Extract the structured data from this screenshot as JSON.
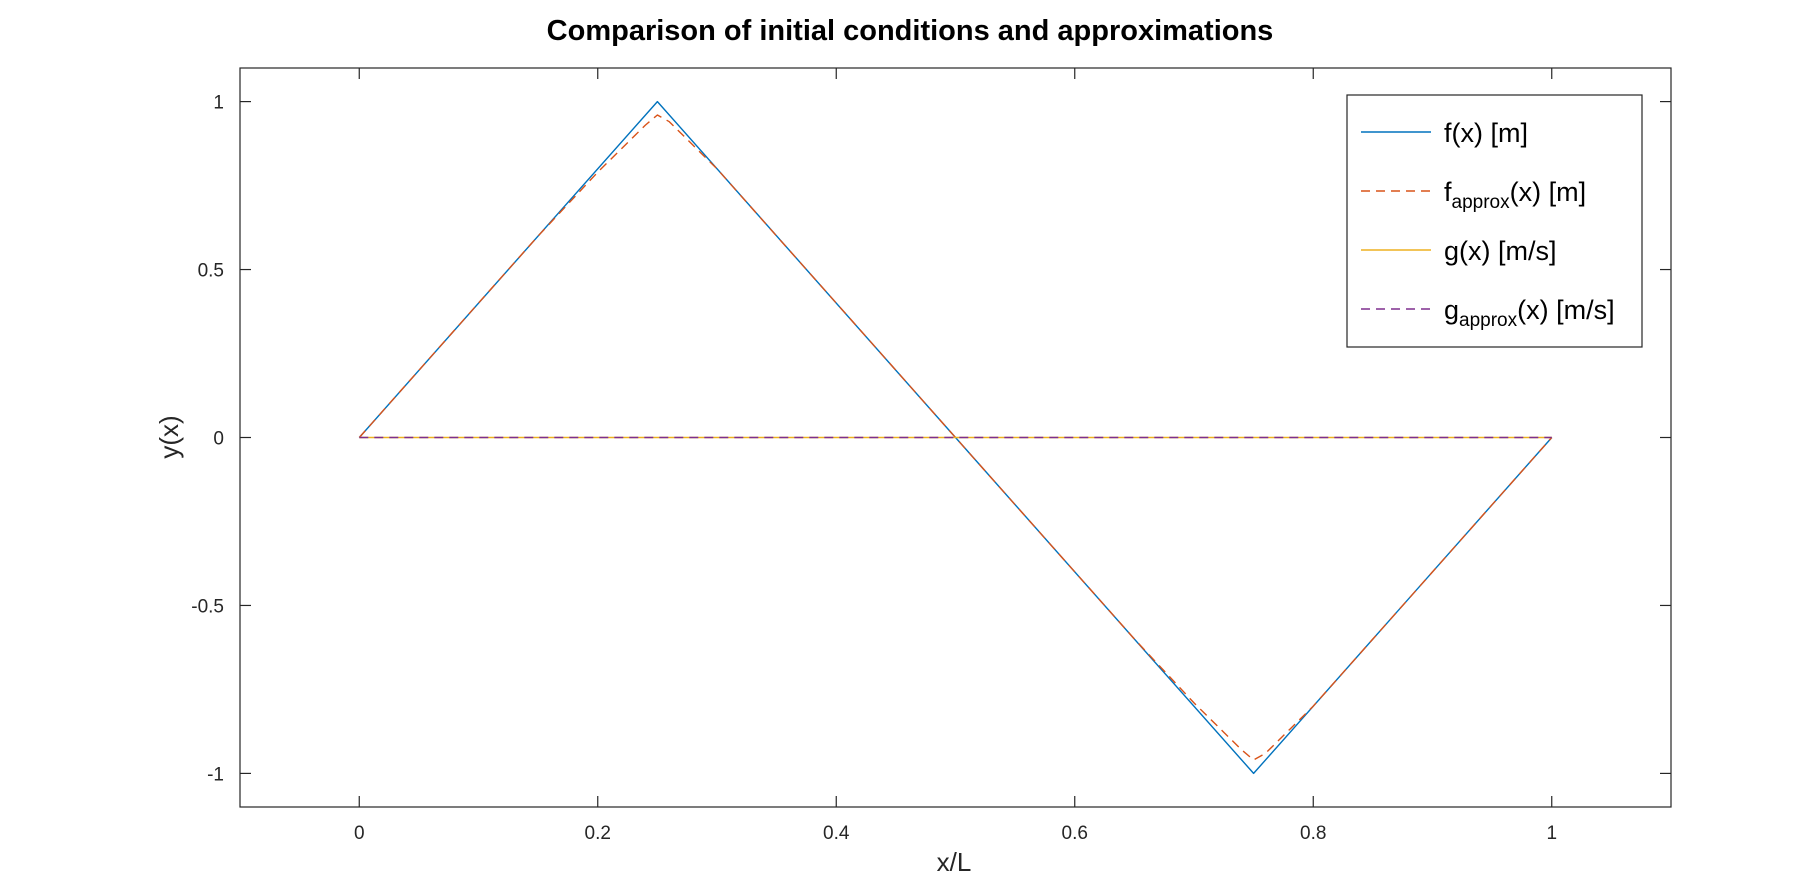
{
  "chart_data": {
    "type": "line",
    "title": "Comparison of initial conditions and approximations",
    "xlabel": "x/L",
    "ylabel": "y(x)",
    "xlim": [
      -0.1,
      1.1
    ],
    "ylim": [
      -1.1,
      1.1
    ],
    "xticks": [
      0,
      0.2,
      0.4,
      0.6,
      0.8,
      1
    ],
    "xtick_labels": [
      "0",
      "0.2",
      "0.4",
      "0.6",
      "0.8",
      "1"
    ],
    "yticks": [
      -1,
      -0.5,
      0,
      0.5,
      1
    ],
    "ytick_labels": [
      "-1",
      "-0.5",
      "0",
      "0.5",
      "1"
    ],
    "grid": false,
    "legend_position": "top-right",
    "series": [
      {
        "name": "f(x) [m]",
        "legend_base": "f",
        "legend_sub": "",
        "legend_rest": "(x) [m]",
        "color": "#0072BD",
        "style": "solid",
        "x": [
          0,
          0.25,
          0.5,
          0.75,
          1
        ],
        "y": [
          0,
          1,
          0,
          -1,
          0
        ]
      },
      {
        "name": "f_approx(x) [m]",
        "legend_base": "f",
        "legend_sub": "approx",
        "legend_rest": "(x) [m]",
        "color": "#D95319",
        "style": "dashed",
        "x": [
          0,
          0.05,
          0.1,
          0.15,
          0.2,
          0.22,
          0.24,
          0.25,
          0.26,
          0.28,
          0.3,
          0.35,
          0.4,
          0.45,
          0.5,
          0.55,
          0.6,
          0.65,
          0.7,
          0.72,
          0.74,
          0.75,
          0.76,
          0.78,
          0.8,
          0.85,
          0.9,
          0.95,
          1
        ],
        "y": [
          0,
          0.2,
          0.4,
          0.6,
          0.79,
          0.86,
          0.93,
          0.96,
          0.94,
          0.87,
          0.8,
          0.6,
          0.4,
          0.2,
          0,
          -0.2,
          -0.4,
          -0.6,
          -0.79,
          -0.86,
          -0.93,
          -0.96,
          -0.94,
          -0.87,
          -0.8,
          -0.6,
          -0.4,
          -0.2,
          0
        ]
      },
      {
        "name": "g(x) [m/s]",
        "legend_base": "g",
        "legend_sub": "",
        "legend_rest": "(x) [m/s]",
        "color": "#EDB120",
        "style": "solid",
        "x": [
          0,
          1
        ],
        "y": [
          0,
          0
        ]
      },
      {
        "name": "g_approx(x) [m/s]",
        "legend_base": "g",
        "legend_sub": "approx",
        "legend_rest": "(x) [m/s]",
        "color": "#7E2F8E",
        "style": "dashed",
        "x": [
          0,
          1
        ],
        "y": [
          0,
          0
        ]
      }
    ]
  }
}
